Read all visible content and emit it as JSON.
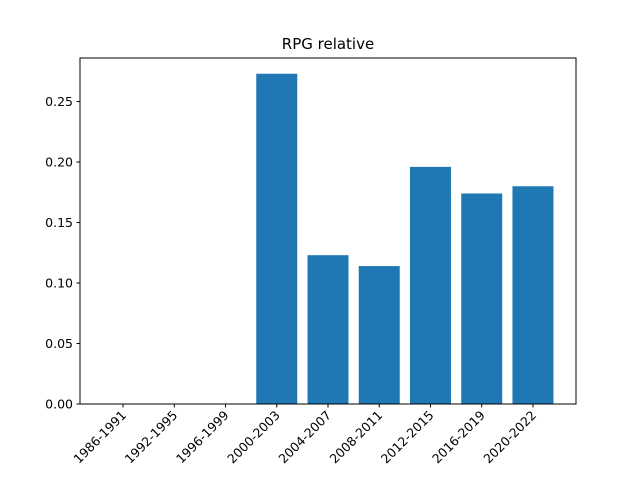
{
  "chart_data": {
    "type": "bar",
    "title": "RPG relative",
    "xlabel": "",
    "ylabel": "",
    "categories": [
      "1986-1991",
      "1992-1995",
      "1996-1999",
      "2000-2003",
      "2004-2007",
      "2008-2011",
      "2012-2015",
      "2016-2019",
      "2020-2022"
    ],
    "values": [
      0,
      0,
      0,
      0.273,
      0.123,
      0.114,
      0.196,
      0.174,
      0.18
    ],
    "ylim": [
      0,
      0.286
    ],
    "yticks": [
      0.0,
      0.05,
      0.1,
      0.15,
      0.2,
      0.25
    ],
    "ytick_labels": [
      "0.00",
      "0.05",
      "0.10",
      "0.15",
      "0.20",
      "0.25"
    ],
    "bar_color": "#1f77b4",
    "grid": false,
    "legend": "none"
  }
}
